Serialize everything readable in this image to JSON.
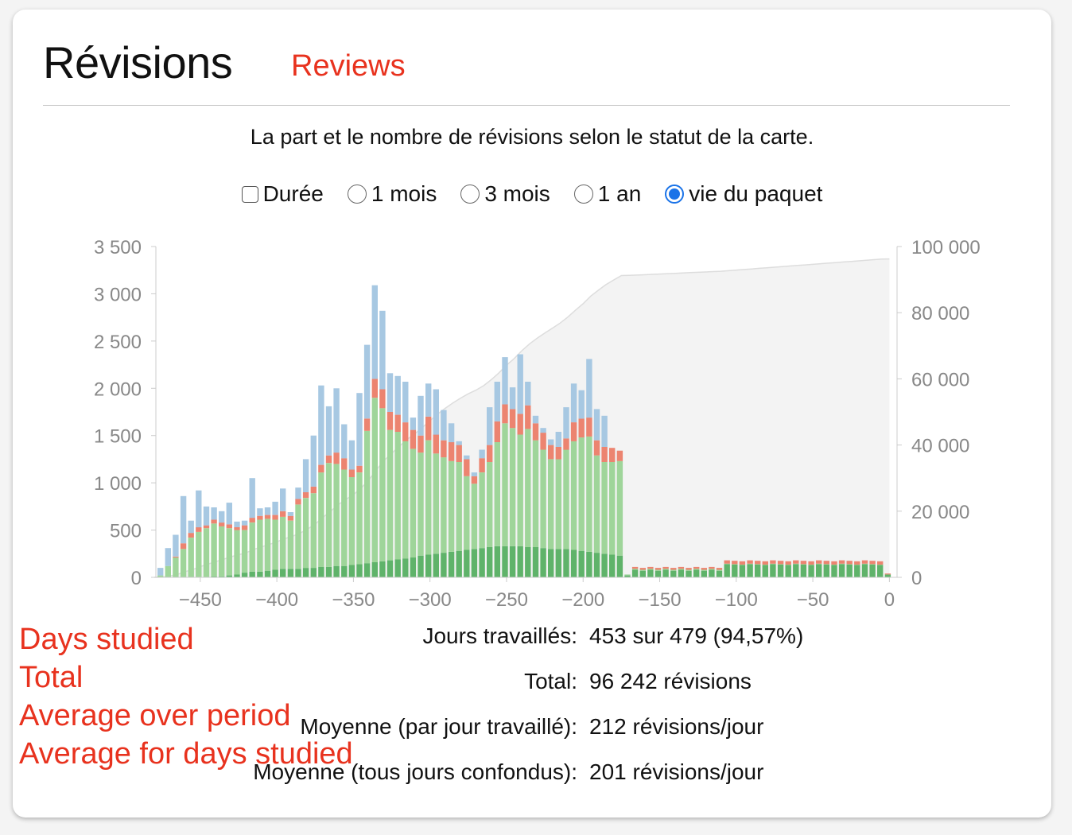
{
  "header": {
    "title": "Révisions",
    "overlay_title": "Reviews"
  },
  "subtitle": "La part et le nombre de révisions selon le statut de la carte.",
  "controls": {
    "duration_label": "Durée",
    "ranges": [
      {
        "label": "1 mois",
        "selected": false
      },
      {
        "label": "3 mois",
        "selected": false
      },
      {
        "label": "1 an",
        "selected": false
      },
      {
        "label": "vie du paquet",
        "selected": true
      }
    ]
  },
  "stats": {
    "rows": [
      {
        "label": "Jours travaillés:",
        "value": "453 sur 479 (94,57%)"
      },
      {
        "label": "Total:",
        "value": "96 242 révisions"
      },
      {
        "label": "Moyenne (par jour travaillé):",
        "value": "212 révisions/jour"
      },
      {
        "label": "Moyenne (tous jours confondus):",
        "value": "201 révisions/jour"
      }
    ],
    "overlay_labels": [
      "Days studied",
      "Total",
      "Average over period",
      "Average for days studied"
    ]
  },
  "colors": {
    "learn": "#a7c8e2",
    "relearn": "#ec8470",
    "young": "#9fd59a",
    "mature": "#5fb36a",
    "cumulative_fill": "#f3f3f3",
    "cumulative_line": "#dddddd",
    "axis_text": "#888888",
    "accent": "#e8321e"
  },
  "chart_data": {
    "type": "bar",
    "stacked": true,
    "x_range": [
      -479,
      5
    ],
    "y_left_ticks": [
      "0",
      "500",
      "1 000",
      "1 500",
      "2 000",
      "2 500",
      "3 000",
      "3 500"
    ],
    "y_left_range": [
      0,
      3500
    ],
    "y_right_ticks": [
      "0",
      "20 000",
      "40 000",
      "60 000",
      "80 000",
      "100 000"
    ],
    "y_right_range": [
      0,
      100000
    ],
    "x_ticks": [
      "−450",
      "−400",
      "−350",
      "−300",
      "−250",
      "−200",
      "−150",
      "−100",
      "−50",
      "0"
    ],
    "x_tick_values": [
      -450,
      -400,
      -350,
      -300,
      -250,
      -200,
      -150,
      -100,
      -50,
      0
    ],
    "bar_width_days": 5,
    "bars": [
      {
        "x": -475,
        "mature": 0,
        "young": 20,
        "relearn": 0,
        "learn": 80
      },
      {
        "x": -470,
        "mature": 0,
        "young": 120,
        "relearn": 0,
        "learn": 190
      },
      {
        "x": -465,
        "mature": 0,
        "young": 210,
        "relearn": 10,
        "learn": 230
      },
      {
        "x": -460,
        "mature": 0,
        "young": 300,
        "relearn": 60,
        "learn": 500
      },
      {
        "x": -455,
        "mature": 0,
        "young": 420,
        "relearn": 50,
        "learn": 130
      },
      {
        "x": -450,
        "mature": 0,
        "young": 480,
        "relearn": 50,
        "learn": 390
      },
      {
        "x": -445,
        "mature": 0,
        "young": 520,
        "relearn": 30,
        "learn": 200
      },
      {
        "x": -440,
        "mature": 10,
        "young": 560,
        "relearn": 40,
        "learn": 130
      },
      {
        "x": -435,
        "mature": 10,
        "young": 530,
        "relearn": 40,
        "learn": 120
      },
      {
        "x": -430,
        "mature": 20,
        "young": 500,
        "relearn": 40,
        "learn": 230
      },
      {
        "x": -425,
        "mature": 30,
        "young": 470,
        "relearn": 30,
        "learn": 60
      },
      {
        "x": -420,
        "mature": 50,
        "young": 450,
        "relearn": 50,
        "learn": 50
      },
      {
        "x": -415,
        "mature": 60,
        "young": 520,
        "relearn": 50,
        "learn": 420
      },
      {
        "x": -410,
        "mature": 60,
        "young": 550,
        "relearn": 40,
        "learn": 80
      },
      {
        "x": -405,
        "mature": 70,
        "young": 550,
        "relearn": 40,
        "learn": 80
      },
      {
        "x": -400,
        "mature": 80,
        "young": 530,
        "relearn": 50,
        "learn": 140
      },
      {
        "x": -395,
        "mature": 90,
        "young": 550,
        "relearn": 60,
        "learn": 240
      },
      {
        "x": -390,
        "mature": 90,
        "young": 510,
        "relearn": 50,
        "learn": 40
      },
      {
        "x": -385,
        "mature": 90,
        "young": 680,
        "relearn": 60,
        "learn": 120
      },
      {
        "x": -380,
        "mature": 100,
        "young": 740,
        "relearn": 60,
        "learn": 350
      },
      {
        "x": -375,
        "mature": 100,
        "young": 790,
        "relearn": 70,
        "learn": 540
      },
      {
        "x": -370,
        "mature": 110,
        "young": 1000,
        "relearn": 80,
        "learn": 840
      },
      {
        "x": -365,
        "mature": 110,
        "young": 1100,
        "relearn": 80,
        "learn": 520
      },
      {
        "x": -360,
        "mature": 120,
        "young": 1080,
        "relearn": 120,
        "learn": 680
      },
      {
        "x": -355,
        "mature": 120,
        "young": 1020,
        "relearn": 120,
        "learn": 360
      },
      {
        "x": -350,
        "mature": 130,
        "young": 930,
        "relearn": 80,
        "learn": 310
      },
      {
        "x": -345,
        "mature": 140,
        "young": 970,
        "relearn": 70,
        "learn": 770
      },
      {
        "x": -340,
        "mature": 150,
        "young": 1400,
        "relearn": 130,
        "learn": 780
      },
      {
        "x": -335,
        "mature": 160,
        "young": 1740,
        "relearn": 200,
        "learn": 990
      },
      {
        "x": -330,
        "mature": 170,
        "young": 1620,
        "relearn": 200,
        "learn": 830
      },
      {
        "x": -325,
        "mature": 180,
        "young": 1380,
        "relearn": 190,
        "learn": 410
      },
      {
        "x": -320,
        "mature": 190,
        "young": 1350,
        "relearn": 180,
        "learn": 410
      },
      {
        "x": -315,
        "mature": 200,
        "young": 1240,
        "relearn": 200,
        "learn": 430
      },
      {
        "x": -310,
        "mature": 210,
        "young": 1150,
        "relearn": 200,
        "learn": 130
      },
      {
        "x": -305,
        "mature": 230,
        "young": 1090,
        "relearn": 180,
        "learn": 420
      },
      {
        "x": -300,
        "mature": 240,
        "young": 1210,
        "relearn": 250,
        "learn": 350
      },
      {
        "x": -295,
        "mature": 250,
        "young": 1060,
        "relearn": 200,
        "learn": 480
      },
      {
        "x": -290,
        "mature": 260,
        "young": 1010,
        "relearn": 180,
        "learn": 320
      },
      {
        "x": -285,
        "mature": 270,
        "young": 960,
        "relearn": 200,
        "learn": 200
      },
      {
        "x": -280,
        "mature": 280,
        "young": 940,
        "relearn": 180,
        "learn": 40
      },
      {
        "x": -275,
        "mature": 290,
        "young": 780,
        "relearn": 180,
        "learn": 40
      },
      {
        "x": -270,
        "mature": 300,
        "young": 690,
        "relearn": 80,
        "learn": 40
      },
      {
        "x": -265,
        "mature": 310,
        "young": 800,
        "relearn": 150,
        "learn": 90
      },
      {
        "x": -260,
        "mature": 320,
        "young": 900,
        "relearn": 180,
        "learn": 400
      },
      {
        "x": -255,
        "mature": 330,
        "young": 1100,
        "relearn": 220,
        "learn": 420
      },
      {
        "x": -250,
        "mature": 330,
        "young": 1300,
        "relearn": 200,
        "learn": 500
      },
      {
        "x": -245,
        "mature": 330,
        "young": 1250,
        "relearn": 200,
        "learn": 230
      },
      {
        "x": -240,
        "mature": 330,
        "young": 1180,
        "relearn": 220,
        "learn": 630
      },
      {
        "x": -235,
        "mature": 320,
        "young": 1250,
        "relearn": 250,
        "learn": 250
      },
      {
        "x": -230,
        "mature": 320,
        "young": 1130,
        "relearn": 180,
        "learn": 80
      },
      {
        "x": -225,
        "mature": 310,
        "young": 1040,
        "relearn": 180,
        "learn": 50
      },
      {
        "x": -220,
        "mature": 300,
        "young": 950,
        "relearn": 150,
        "learn": 60
      },
      {
        "x": -215,
        "mature": 300,
        "young": 950,
        "relearn": 130,
        "learn": 160
      },
      {
        "x": -210,
        "mature": 300,
        "young": 1050,
        "relearn": 120,
        "learn": 330
      },
      {
        "x": -205,
        "mature": 290,
        "young": 1150,
        "relearn": 200,
        "learn": 410
      },
      {
        "x": -200,
        "mature": 280,
        "young": 1200,
        "relearn": 200,
        "learn": 300
      },
      {
        "x": -195,
        "mature": 270,
        "young": 1220,
        "relearn": 200,
        "learn": 620
      },
      {
        "x": -190,
        "mature": 260,
        "young": 1030,
        "relearn": 160,
        "learn": 330
      },
      {
        "x": -185,
        "mature": 250,
        "young": 970,
        "relearn": 160,
        "learn": 330
      },
      {
        "x": -180,
        "mature": 240,
        "young": 980,
        "relearn": 150,
        "learn": 0
      },
      {
        "x": -175,
        "mature": 230,
        "young": 1000,
        "relearn": 110,
        "learn": 0
      },
      {
        "x": -170,
        "mature": 20,
        "young": 10,
        "relearn": 0,
        "learn": 0
      }
    ],
    "cumulative_total": 96242
  }
}
